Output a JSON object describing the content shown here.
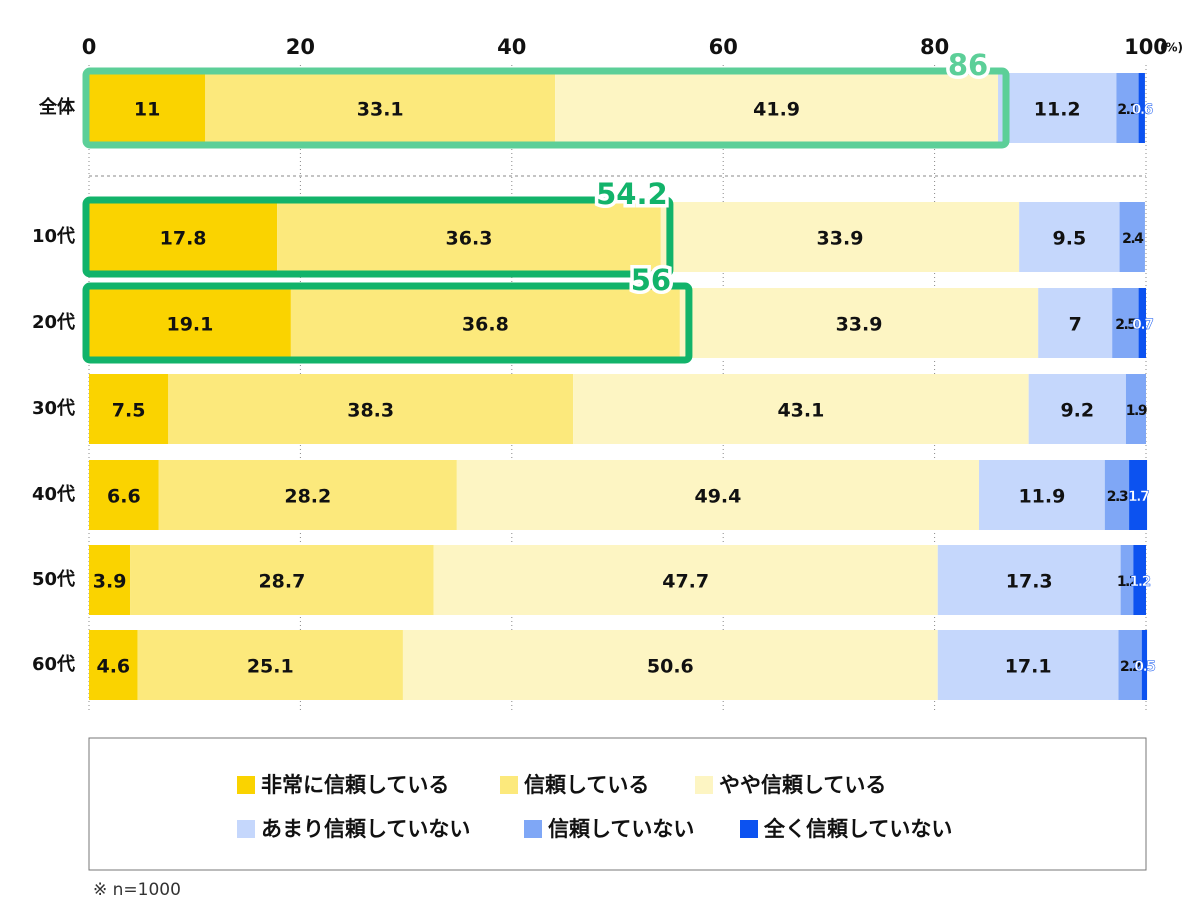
{
  "chart_data": {
    "type": "stacked-bar-horizontal",
    "categories": [
      "全体",
      "10代",
      "20代",
      "30代",
      "40代",
      "50代",
      "60代"
    ],
    "series": [
      {
        "name": "非常に信頼している",
        "color": "#fad300",
        "values": [
          11.0,
          17.8,
          19.1,
          7.5,
          6.6,
          3.9,
          4.6
        ]
      },
      {
        "name": "信頼している",
        "color": "#fce97c",
        "values": [
          33.1,
          36.3,
          36.8,
          38.3,
          28.2,
          28.7,
          25.1
        ]
      },
      {
        "name": "やや信頼している",
        "color": "#fdf5c3",
        "values": [
          41.9,
          33.9,
          33.9,
          43.1,
          49.4,
          47.7,
          50.6
        ]
      },
      {
        "name": "あまり信頼していない",
        "color": "#c5d7fc",
        "values": [
          11.2,
          9.5,
          7.0,
          9.2,
          11.9,
          17.3,
          17.1
        ]
      },
      {
        "name": "信頼していない",
        "color": "#7fa7f6",
        "values": [
          2.1,
          2.4,
          2.5,
          1.9,
          2.3,
          1.2,
          2.2
        ]
      },
      {
        "name": "全く信頼していない",
        "color": "#0c52f0",
        "values": [
          0.6,
          null,
          0.7,
          null,
          1.7,
          1.2,
          0.5
        ]
      }
    ],
    "annotations": [
      {
        "value": 86.0,
        "color": "#5ccf98"
      },
      {
        "value": 54.2,
        "color": "#12b36a"
      },
      {
        "value": 56.0,
        "color": "#12b36a"
      }
    ],
    "xlim": [
      0,
      100
    ],
    "xticks": [
      0,
      20,
      40,
      60,
      80,
      100
    ],
    "x_unit": "(%)",
    "grid": true,
    "note": "※ n=1000"
  }
}
